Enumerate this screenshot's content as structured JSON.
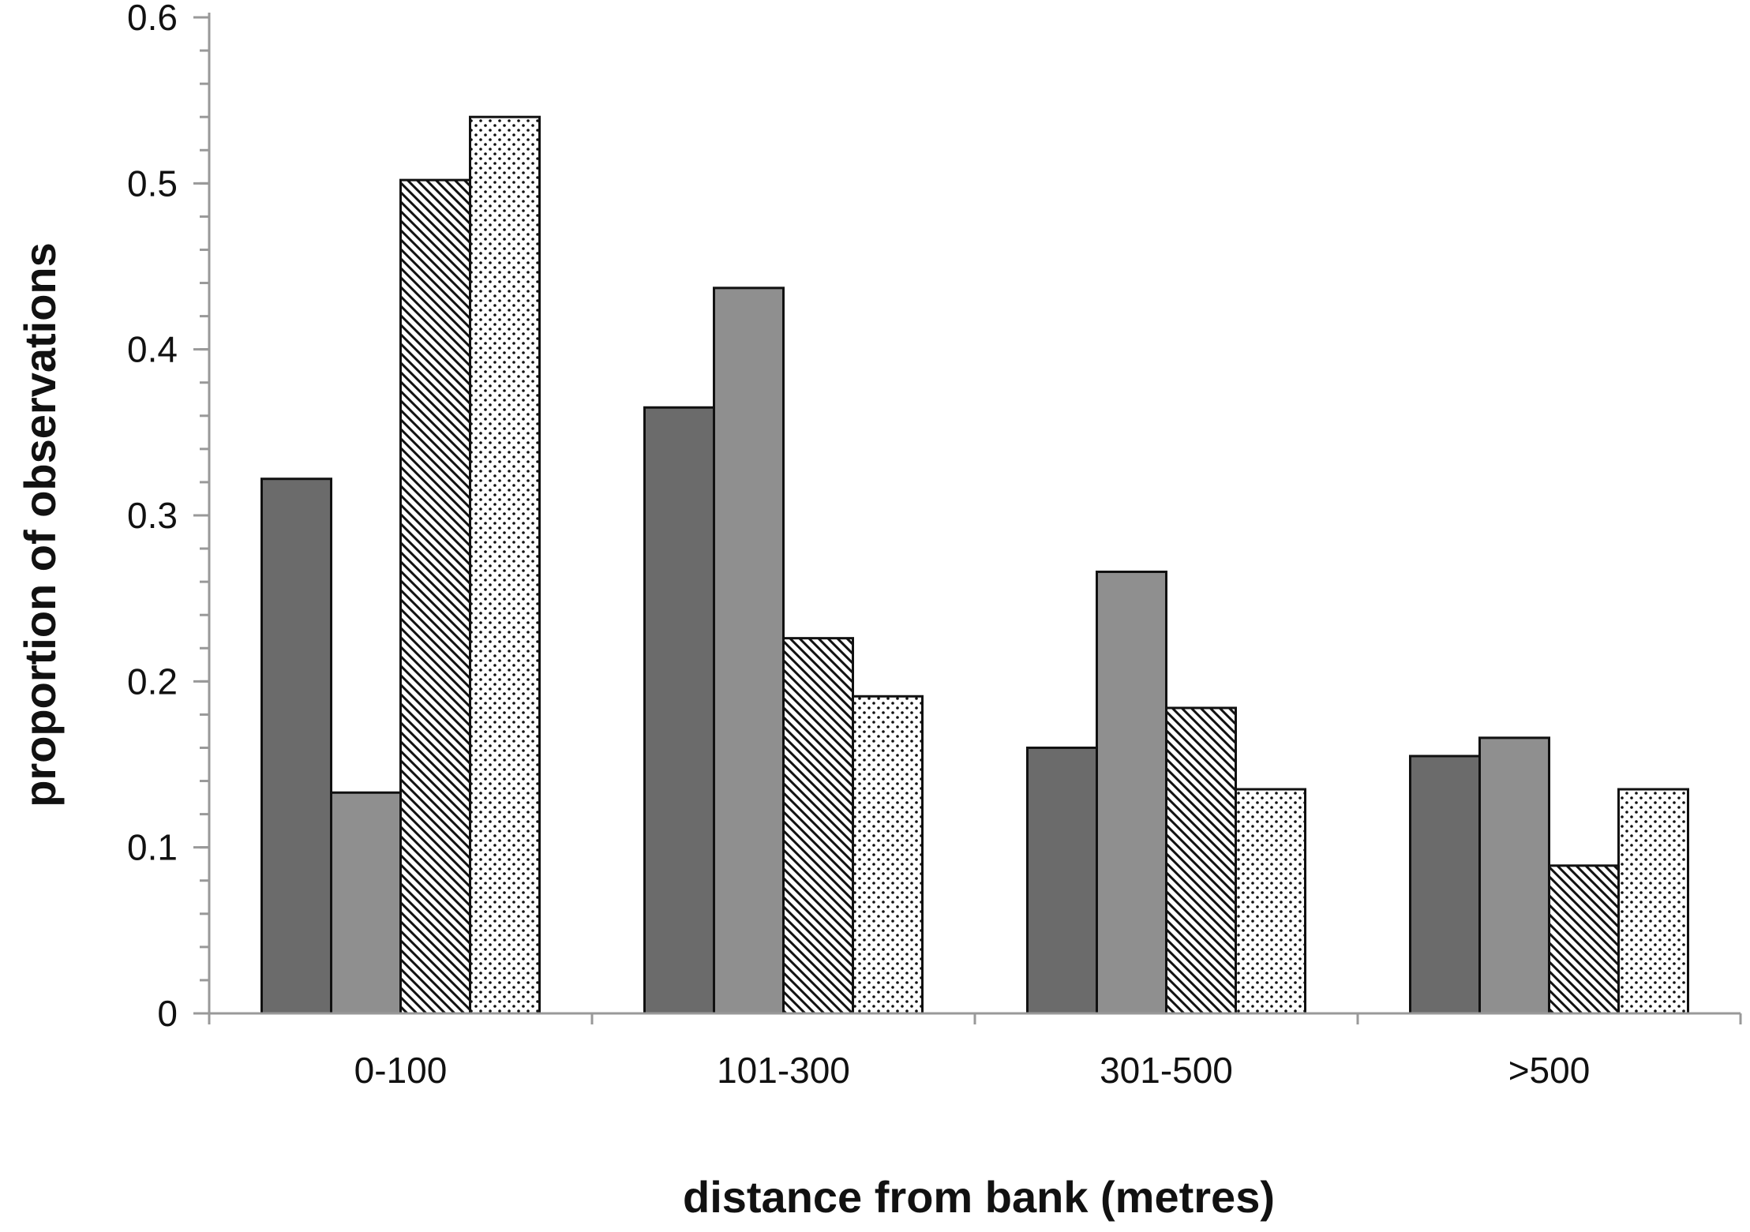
{
  "chart_data": {
    "type": "bar",
    "title": "",
    "xlabel": "distance from bank (metres)",
    "ylabel": "proportion of observations",
    "ylim": [
      0,
      0.6
    ],
    "yticks": [
      "0",
      "0.1",
      "0.2",
      "0.3",
      "0.4",
      "0.5",
      "0.6"
    ],
    "ytick_values": [
      0,
      0.1,
      0.2,
      0.3,
      0.4,
      0.5,
      0.6
    ],
    "categories": [
      "0-100",
      "101-300",
      "301-500",
      ">500"
    ],
    "grid": false,
    "legend": "none",
    "series": [
      {
        "fill": "solid",
        "color": "#6b6b6b",
        "values": [
          0.322,
          0.365,
          0.16,
          0.155
        ]
      },
      {
        "fill": "solid",
        "color": "#8f8f8f",
        "values": [
          0.133,
          0.437,
          0.266,
          0.166
        ]
      },
      {
        "fill": "diagonal-hatch",
        "color": "#111111",
        "values": [
          0.502,
          0.226,
          0.184,
          0.089
        ]
      },
      {
        "fill": "dots",
        "color": "#111111",
        "values": [
          0.54,
          0.191,
          0.135,
          0.135
        ]
      }
    ]
  }
}
